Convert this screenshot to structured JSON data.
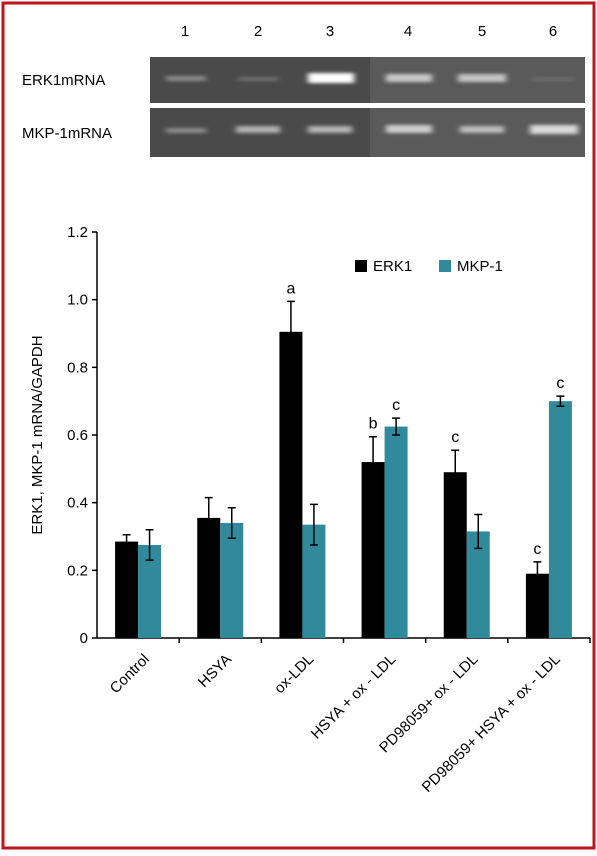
{
  "gel": {
    "lanes": [
      "1",
      "2",
      "3",
      "4",
      "5",
      "6"
    ],
    "rows": [
      "ERK1mRNA",
      "MKP-1mRNA"
    ]
  },
  "chart_data": {
    "type": "bar",
    "y_label": "ERK1, MKP-1 mRNA/GAPDH",
    "categories": [
      "Control",
      "HSYA",
      "ox-LDL",
      "HSYA + ox - LDL",
      "PD98059+ ox - LDL",
      "PD98059+ HSYA + ox - LDL"
    ],
    "series": [
      {
        "name": "ERK1",
        "color": "#000000",
        "values": [
          0.285,
          0.355,
          0.905,
          0.52,
          0.49,
          0.19
        ],
        "errors": [
          0.02,
          0.06,
          0.09,
          0.075,
          0.065,
          0.035
        ],
        "labels": [
          null,
          null,
          "a",
          "b",
          "c",
          "c"
        ]
      },
      {
        "name": "MKP-1",
        "color": "#318a9c",
        "values": [
          0.275,
          0.34,
          0.335,
          0.625,
          0.315,
          0.7
        ],
        "errors": [
          0.045,
          0.045,
          0.06,
          0.025,
          0.05,
          0.015
        ],
        "labels": [
          null,
          null,
          null,
          "c",
          null,
          "c"
        ]
      }
    ],
    "ylim": [
      0,
      1.2
    ],
    "yticks": [
      0,
      0.2,
      0.4,
      0.6,
      0.8,
      {
        "value": 1,
        "label": "1.0"
      },
      1.2
    ],
    "legend": "upper right"
  }
}
